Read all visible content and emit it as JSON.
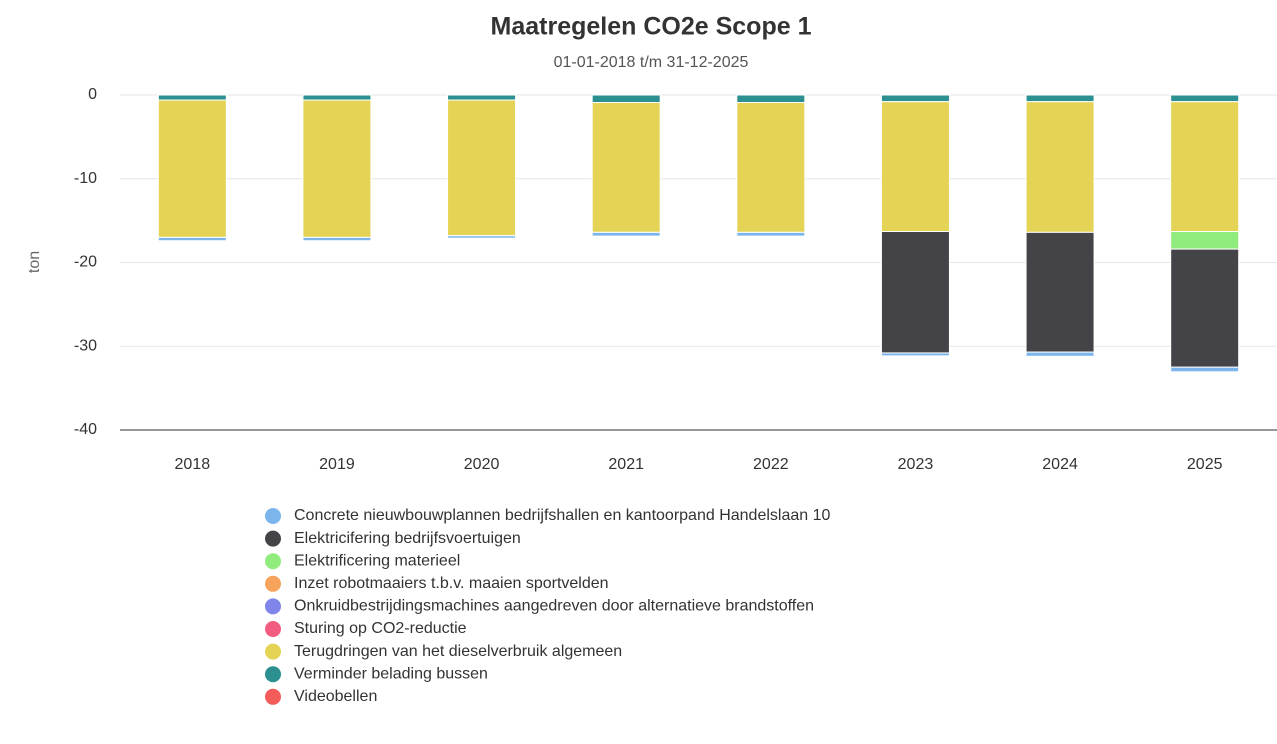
{
  "chart_data": {
    "type": "bar",
    "stacked": true,
    "title": "Maatregelen CO2e Scope 1",
    "subtitle": "01-01-2018 t/m 31-12-2025",
    "y_label": "ton",
    "categories": [
      "2018",
      "2019",
      "2020",
      "2021",
      "2022",
      "2023",
      "2024",
      "2025"
    ],
    "ylim": [
      -40,
      0
    ],
    "yticks": [
      0,
      -10,
      -20,
      -30,
      -40
    ],
    "grid": true,
    "series": [
      {
        "name": "Concrete nieuwbouwplannen bedrijfshallen en kantoorpand Handelslaan 10",
        "color": "#7cb5ec",
        "values": [
          -0.4,
          -0.4,
          -0.3,
          -0.45,
          -0.45,
          -0.35,
          -0.5,
          -0.55
        ]
      },
      {
        "name": "Elektricifering bedrijfsvoertuigen",
        "color": "#434348",
        "values": [
          0,
          0,
          0,
          0,
          0,
          -14.5,
          -14.3,
          -14.1
        ]
      },
      {
        "name": "Elektrificering materieel",
        "color": "#90ed7d",
        "values": [
          0,
          0,
          0,
          0,
          0,
          0,
          0,
          -2.1
        ]
      },
      {
        "name": "Inzet robotmaaiers t.b.v. maaien sportvelden",
        "color": "#f7a35c",
        "values": [
          0,
          0,
          0,
          0,
          0,
          0,
          0,
          0
        ]
      },
      {
        "name": "Onkruidbestrijdingsmachines aangedreven door alternatieve brandstoffen",
        "color": "#8085e9",
        "values": [
          0,
          0,
          0,
          0,
          0,
          0,
          0,
          0
        ]
      },
      {
        "name": "Sturing op CO2-reductie",
        "color": "#f15c80",
        "values": [
          0,
          0,
          0,
          0,
          0,
          0,
          0,
          0
        ]
      },
      {
        "name": "Terugdringen van het dieselverbruik algemeen",
        "color": "#e4d354",
        "values": [
          -16.4,
          -16.4,
          -16.2,
          -15.5,
          -15.5,
          -15.5,
          -15.6,
          -15.5
        ]
      },
      {
        "name": "Verminder belading bussen",
        "color": "#2b908f",
        "values": [
          -0.6,
          -0.6,
          -0.6,
          -0.9,
          -0.9,
          -0.8,
          -0.8,
          -0.8
        ]
      },
      {
        "name": "Videobellen",
        "color": "#f45b5b",
        "values": [
          0,
          0,
          0,
          0,
          0,
          0,
          0,
          0
        ]
      }
    ]
  }
}
